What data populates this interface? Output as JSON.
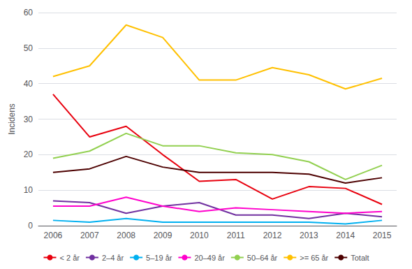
{
  "chart_data": {
    "type": "line",
    "ylabel": "Incidens",
    "x": [
      2006,
      2007,
      2008,
      2009,
      2010,
      2011,
      2012,
      2013,
      2014,
      2015
    ],
    "series": [
      {
        "name": "< 2 år",
        "color": "#e8000e",
        "values": [
          37,
          25,
          28,
          20,
          12.5,
          13,
          7.5,
          11,
          10.5,
          6
        ]
      },
      {
        "name": "2–4 år",
        "color": "#7030a0",
        "values": [
          7,
          6.5,
          3.5,
          5.5,
          6.5,
          3,
          3,
          2,
          3.5,
          2.5
        ]
      },
      {
        "name": "5–19 år",
        "color": "#00b0f0",
        "values": [
          1.5,
          1,
          2,
          1,
          1,
          1,
          1,
          1,
          0.5,
          1.5
        ]
      },
      {
        "name": "20–49 år",
        "color": "#ff00cc",
        "values": [
          5.5,
          5.5,
          8,
          5.5,
          4,
          5,
          4.5,
          4,
          3.5,
          4
        ]
      },
      {
        "name": "50–64 år",
        "color": "#92d050",
        "values": [
          19,
          21,
          26,
          22.5,
          22.5,
          20.5,
          20,
          18,
          13,
          17
        ]
      },
      {
        "name": ">= 65 år",
        "color": "#ffc000",
        "values": [
          42,
          45,
          56.5,
          53,
          41,
          41,
          44.5,
          42.5,
          38.5,
          41.5
        ]
      },
      {
        "name": "Totalt",
        "color": "#4d0000",
        "values": [
          15,
          16,
          19.5,
          16.5,
          15,
          15,
          15,
          14.5,
          12,
          13.5
        ]
      }
    ],
    "xlim": [
      2005.6,
      2015.4
    ],
    "xticks": [
      2006,
      2007,
      2008,
      2009,
      2010,
      2011,
      2012,
      2013,
      2014,
      2015
    ],
    "ylim": [
      0,
      60
    ],
    "yticks": [
      0,
      10,
      20,
      30,
      40,
      50,
      60
    ],
    "grid": true,
    "legend": "bottom",
    "marker": "none"
  }
}
